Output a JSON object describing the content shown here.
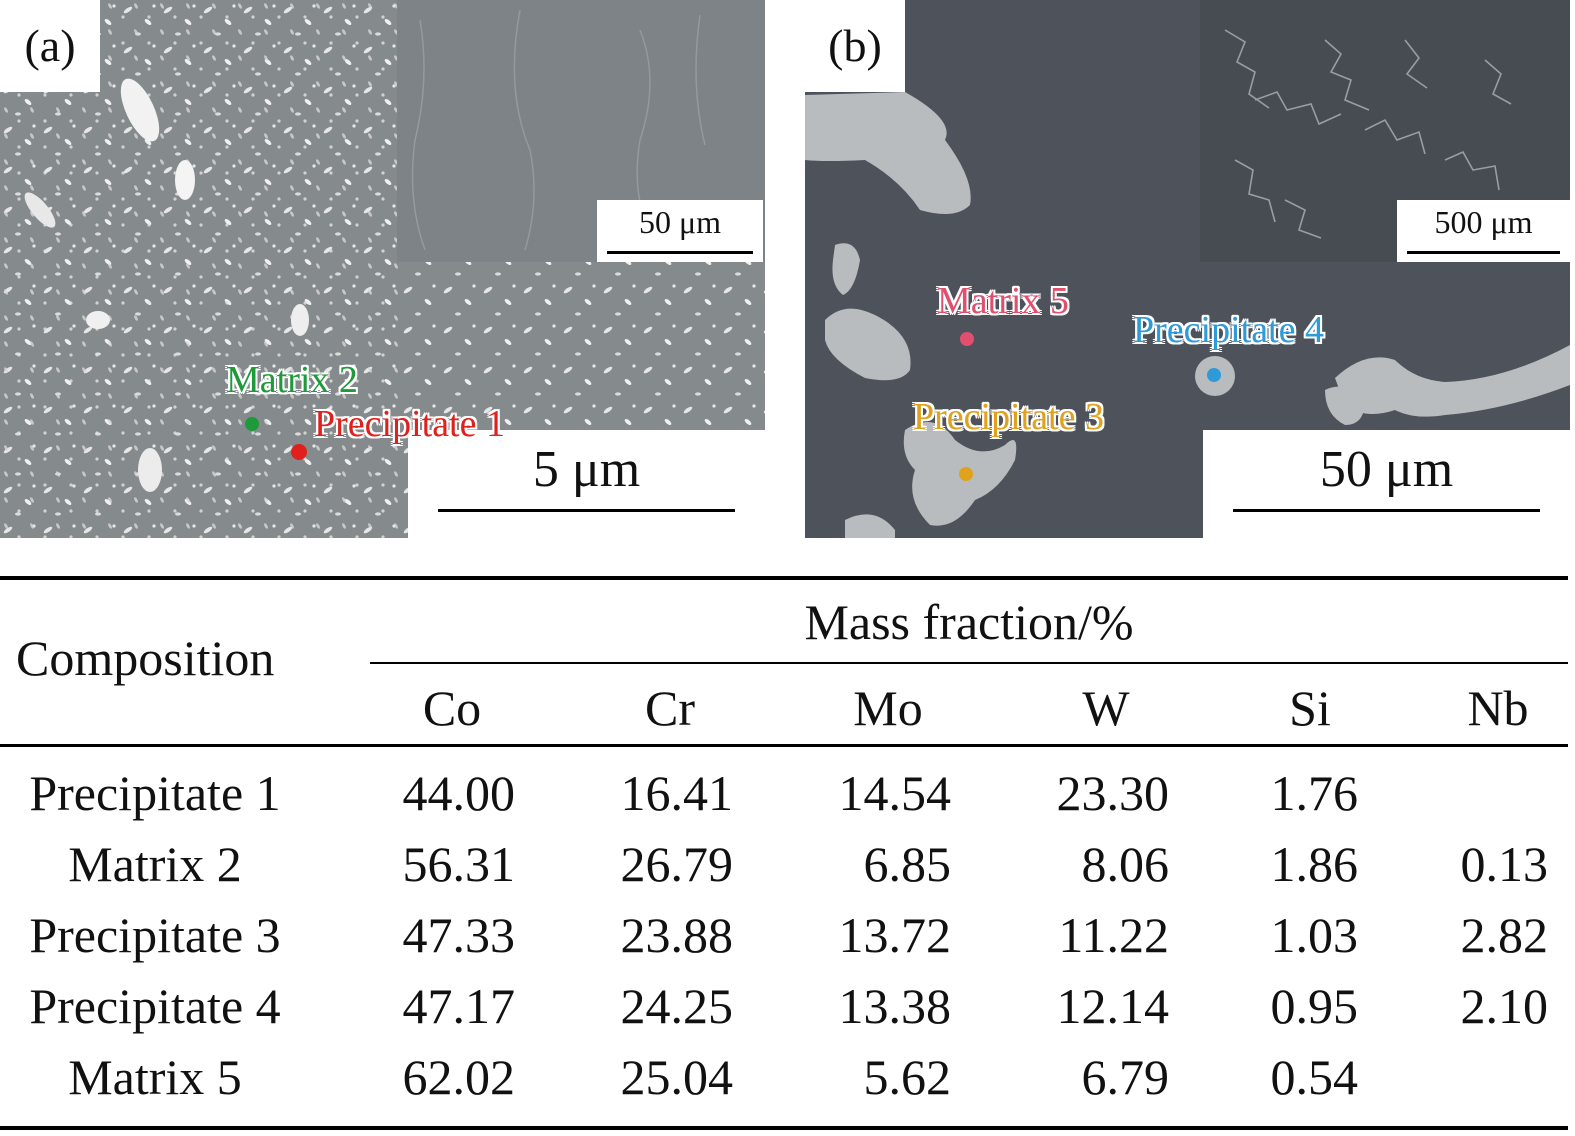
{
  "figure": {
    "panel_a": {
      "letter": "(a)",
      "inset_scale": "50 μm",
      "main_scale": "5 μm",
      "points": [
        {
          "label": "Matrix 2",
          "color": "#1f9a3a"
        },
        {
          "label": "Precipitate 1",
          "color": "#e0201c"
        }
      ]
    },
    "panel_b": {
      "letter": "(b)",
      "inset_scale": "500 μm",
      "main_scale": "50 μm",
      "points": [
        {
          "label": "Matrix 5",
          "color": "#e0506e"
        },
        {
          "label": "Precipitate 4",
          "color": "#2f9ad8"
        },
        {
          "label": "Precipitate 3",
          "color": "#e0a21c"
        }
      ]
    }
  },
  "table": {
    "row_header": "Composition",
    "group_header": "Mass fraction/%",
    "columns": [
      "Co",
      "Cr",
      "Mo",
      "W",
      "Si",
      "Nb"
    ],
    "rows": [
      {
        "label": "Precipitate 1",
        "values": [
          "44.00",
          "16.41",
          "14.54",
          "23.30",
          "1.76",
          ""
        ]
      },
      {
        "label": "Matrix 2",
        "values": [
          "56.31",
          "26.79",
          "6.85",
          "8.06",
          "1.86",
          "0.13"
        ]
      },
      {
        "label": "Precipitate 3",
        "values": [
          "47.33",
          "23.88",
          "13.72",
          "11.22",
          "1.03",
          "2.82"
        ]
      },
      {
        "label": "Precipitate 4",
        "values": [
          "47.17",
          "24.25",
          "13.38",
          "12.14",
          "0.95",
          "2.10"
        ]
      },
      {
        "label": "Matrix 5",
        "values": [
          "62.02",
          "25.04",
          "5.62",
          "6.79",
          "0.54",
          ""
        ]
      }
    ]
  }
}
